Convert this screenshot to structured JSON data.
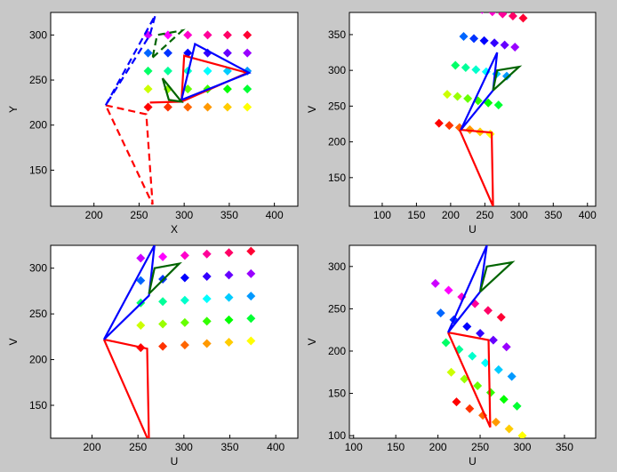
{
  "chart_data": [
    {
      "type": "scatter",
      "xlabel": "X",
      "ylabel": "Y",
      "xlim": [
        152,
        426
      ],
      "ylim": [
        110,
        325
      ],
      "xticks": [
        200,
        250,
        300,
        350,
        400
      ],
      "yticks": [
        150,
        200,
        250,
        300
      ],
      "series": [
        {
          "colormap": "hsv",
          "x": [
            260,
            282,
            304,
            326,
            348,
            370,
            260,
            282,
            304,
            326,
            348,
            370,
            260,
            282,
            304,
            326,
            348,
            370,
            260,
            282,
            304,
            326,
            348,
            370,
            260,
            282,
            304,
            326,
            348,
            370
          ],
          "y": [
            220,
            220,
            220,
            220,
            220,
            220,
            240,
            240,
            240,
            240,
            240,
            240,
            260,
            260,
            260,
            260,
            260,
            260,
            280,
            280,
            280,
            280,
            280,
            280,
            300,
            300,
            300,
            300,
            300,
            300
          ]
        },
        {
          "color": "#ff0000",
          "dash": true,
          "x": [
            213,
            258,
            265,
            213
          ],
          "y": [
            222,
            212,
            112,
            222
          ]
        },
        {
          "color": "#0000ff",
          "dash": true,
          "x": [
            213,
            268,
            262,
            213
          ],
          "y": [
            222,
            322,
            300,
            222
          ]
        },
        {
          "color": "#006400",
          "dash": true,
          "x": [
            265,
            298,
            270,
            265
          ],
          "y": [
            275,
            305,
            300,
            275
          ]
        },
        {
          "color": "#ff0000",
          "dash": false,
          "x": [
            297,
            300,
            370,
            297,
            262
          ],
          "y": [
            226,
            277,
            258,
            226,
            225
          ]
        },
        {
          "color": "#0000ff",
          "dash": false,
          "x": [
            297,
            312,
            372,
            297
          ],
          "y": [
            228,
            290,
            258,
            228
          ]
        },
        {
          "color": "#006400",
          "dash": false,
          "x": [
            276,
            283,
            297,
            276
          ],
          "y": [
            252,
            228,
            226,
            252
          ]
        }
      ]
    },
    {
      "type": "scatter",
      "xlabel": "U",
      "ylabel": "V",
      "xlim": [
        52,
        412
      ],
      "ylim": [
        110,
        381
      ],
      "xticks": [
        100,
        150,
        200,
        250,
        300,
        350,
        400
      ],
      "yticks": [
        150,
        200,
        250,
        300,
        350
      ],
      "series": [
        {
          "colormap": "hsv",
          "x": [
            183,
            198,
            213,
            228,
            243,
            258,
            195,
            210,
            225,
            240,
            255,
            270,
            207,
            222,
            237,
            252,
            267,
            282,
            219,
            234,
            249,
            264,
            279,
            294,
            231,
            246,
            261,
            276,
            291,
            306
          ],
          "y": [
            226,
            223,
            220,
            217,
            214,
            211,
            266.5,
            263.5,
            260.5,
            257.5,
            254.5,
            251.5,
            307,
            304,
            301,
            298,
            295,
            292,
            347.5,
            344.5,
            341.5,
            338.5,
            335.5,
            332.5,
            388,
            385,
            382,
            379,
            376,
            373
          ]
        },
        {
          "color": "#ff0000",
          "dash": false,
          "x": [
            213,
            260,
            262,
            213
          ],
          "y": [
            217,
            213,
            110,
            217
          ]
        },
        {
          "color": "#0000ff",
          "dash": false,
          "x": [
            215,
            268,
            262,
            215
          ],
          "y": [
            217,
            325,
            272,
            217
          ]
        },
        {
          "color": "#006400",
          "dash": false,
          "x": [
            262,
            300,
            268,
            262
          ],
          "y": [
            272,
            305,
            300,
            272
          ]
        }
      ]
    },
    {
      "type": "scatter",
      "xlabel": "U",
      "ylabel": "V",
      "xlim": [
        155,
        424
      ],
      "ylim": [
        114,
        325
      ],
      "xticks": [
        200,
        250,
        300,
        350,
        400
      ],
      "yticks": [
        150,
        200,
        250,
        300
      ],
      "series": [
        {
          "colormap": "hsv",
          "x": [
            253,
            277,
            301,
            325,
            349,
            373,
            253,
            277,
            301,
            325,
            349,
            373,
            253,
            277,
            301,
            325,
            349,
            373,
            253,
            277,
            301,
            325,
            349,
            373,
            253,
            277,
            301,
            325,
            349,
            373
          ],
          "y": [
            213,
            214.5,
            216,
            217.5,
            219,
            220.5,
            237.5,
            239,
            240.5,
            242,
            243.5,
            245,
            262,
            263.5,
            265,
            266.5,
            268,
            269.5,
            286.5,
            288,
            289.5,
            291,
            292.5,
            294,
            311,
            312.5,
            314,
            315.5,
            317,
            318.5
          ]
        },
        {
          "color": "#ff0000",
          "dash": false,
          "x": [
            213,
            260,
            262,
            213
          ],
          "y": [
            222,
            212,
            110,
            222
          ]
        },
        {
          "color": "#0000ff",
          "dash": false,
          "x": [
            213,
            268,
            262,
            213
          ],
          "y": [
            222,
            325,
            270,
            222
          ]
        },
        {
          "color": "#006400",
          "dash": false,
          "x": [
            262,
            295,
            268,
            262
          ],
          "y": [
            272,
            305,
            300,
            272
          ]
        }
      ]
    },
    {
      "type": "scatter",
      "xlabel": "U",
      "ylabel": "V",
      "xlim": [
        95,
        387
      ],
      "ylim": [
        97,
        325
      ],
      "xticks": [
        100,
        150,
        200,
        250,
        300,
        350
      ],
      "yticks": [
        100,
        150,
        200,
        250,
        300
      ],
      "series": [
        {
          "colormap": "hsv",
          "x": [
            222,
            237.6,
            253.2,
            268.8,
            284.4,
            300,
            215.75,
            231.35,
            246.95,
            262.55,
            278.15,
            293.75,
            209.5,
            225.1,
            240.7,
            256.3,
            271.9,
            287.5,
            203.25,
            218.85,
            234.45,
            250.05,
            265.65,
            281.25,
            197,
            212.6,
            228.2,
            243.8,
            259.4,
            275
          ],
          "y": [
            140,
            132,
            124,
            116,
            108,
            100,
            175,
            167,
            159,
            151,
            143,
            135,
            210,
            202,
            194,
            186,
            178,
            170,
            245,
            237,
            229,
            221,
            213,
            205,
            280,
            272,
            264,
            256,
            248,
            240
          ]
        },
        {
          "color": "#ff0000",
          "dash": false,
          "x": [
            212,
            260,
            262,
            212
          ],
          "y": [
            222,
            213,
            110,
            222
          ]
        },
        {
          "color": "#0000ff",
          "dash": false,
          "x": [
            212,
            258,
            250,
            212
          ],
          "y": [
            222,
            325,
            270,
            222
          ]
        },
        {
          "color": "#006400",
          "dash": false,
          "x": [
            250,
            288,
            258,
            250
          ],
          "y": [
            270,
            305,
            300,
            270
          ]
        }
      ]
    }
  ]
}
